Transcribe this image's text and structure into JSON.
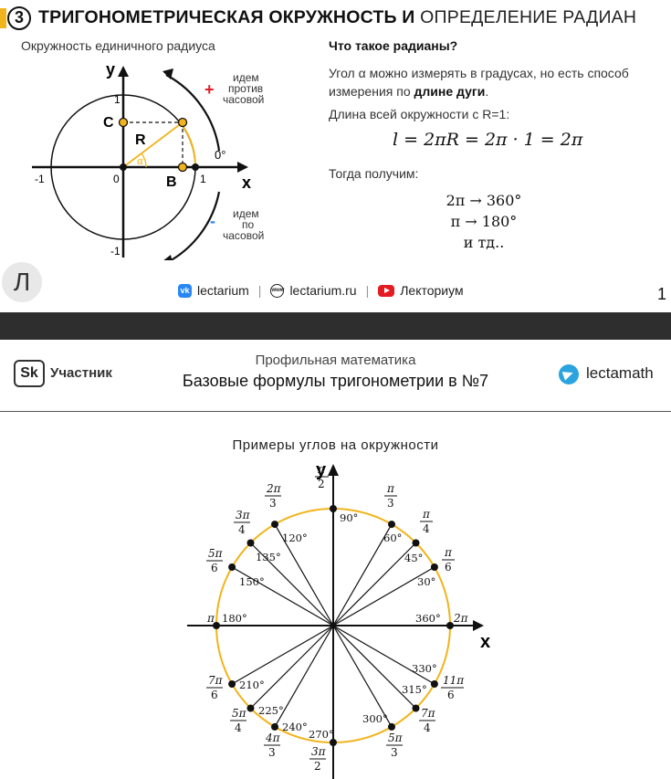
{
  "slide1": {
    "number": "3",
    "title_bold": "ТРИГОНОМЕТРИЧЕСКАЯ ОКРУЖНОСТЬ И",
    "title_light": "ОПРЕДЕЛЕНИЕ РАДИАН",
    "subtitle_left": "Окружность единичного радиуса",
    "right_title": "Что такое радианы?",
    "para1_start": "Угол α можно измерять в градусах, но есть способ измерения по ",
    "para1_bold": "длине дуги",
    "para1_end": ".",
    "para2": "Длина всей окружности с R=1:",
    "formula": "l = 2πR = 2π · 1 = 2π",
    "para3": "Тогда получим:",
    "conv1": "2π → 360°",
    "conv2": "π → 180°",
    "conv3": "и тд..",
    "diagram": {
      "y_label": "y",
      "x_label": "x",
      "one_top": "1",
      "minus_one_bottom": "-1",
      "minus_one_left": "-1",
      "one_right": "1",
      "zero": "0",
      "label_c": "C",
      "label_b": "B",
      "label_r": "R",
      "alpha": "α",
      "zero_deg": "0°",
      "plus": "+",
      "ccw1": "идем",
      "ccw2": "против",
      "ccw3": "часовой",
      "minus": "-",
      "cw1": "идем",
      "cw2": "по",
      "cw3": "часовой"
    },
    "avatar": "Л",
    "footer": {
      "vk": "lectarium",
      "site": "lectarium.ru",
      "yt": "Лекториум"
    },
    "page": "1"
  },
  "slide2": {
    "sk_badge": "Sk",
    "sk_label": "Участник",
    "course": "Профильная математика",
    "lesson": "Базовые формулы тригонометрии в №7",
    "telegram": "lectamath",
    "examples_title": "Примеры углов на окружности",
    "axis_x": "x",
    "axis_y": "y",
    "colors": {
      "circle": "#f2b41c",
      "lines": "#111111"
    }
  }
}
